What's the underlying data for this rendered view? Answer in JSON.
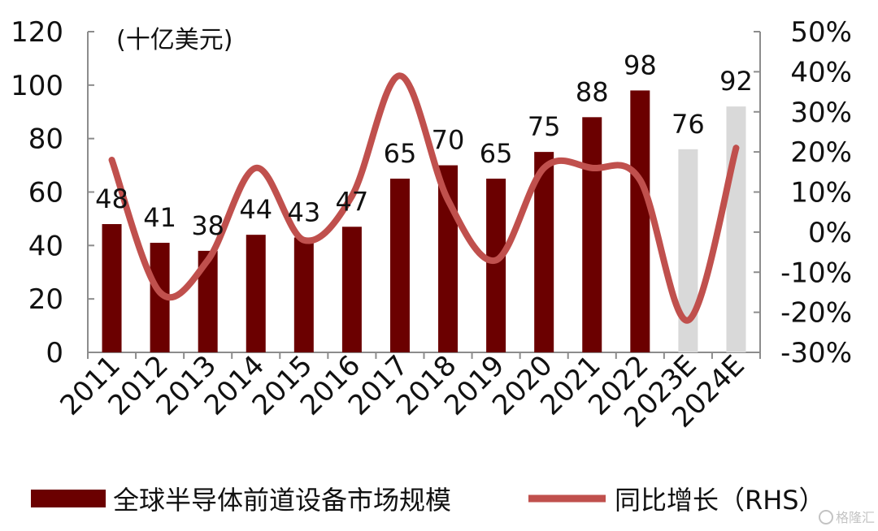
{
  "chart_data": {
    "type": "bar",
    "unit_label": "(十亿美元)",
    "categories": [
      "2011",
      "2012",
      "2013",
      "2014",
      "2015",
      "2016",
      "2017",
      "2018",
      "2019",
      "2020",
      "2021",
      "2022",
      "2023E",
      "2024E"
    ],
    "series": [
      {
        "name": "全球半导体前道设备市场规模",
        "type": "bar",
        "axis": "left",
        "values": [
          48,
          41,
          38,
          44,
          43,
          47,
          65,
          70,
          65,
          75,
          88,
          98,
          76,
          92
        ],
        "colors": [
          "#6b0000",
          "#6b0000",
          "#6b0000",
          "#6b0000",
          "#6b0000",
          "#6b0000",
          "#6b0000",
          "#6b0000",
          "#6b0000",
          "#6b0000",
          "#6b0000",
          "#6b0000",
          "#d9d9d9",
          "#d9d9d9"
        ]
      },
      {
        "name": "同比增长（RHS）",
        "type": "line",
        "axis": "right",
        "smooth": true,
        "color": "#c0504d",
        "values": [
          0.18,
          -0.15,
          -0.07,
          0.16,
          -0.02,
          0.09,
          0.39,
          0.08,
          -0.07,
          0.16,
          0.16,
          0.13,
          -0.22,
          0.21
        ]
      }
    ],
    "y_left": {
      "min": 0,
      "max": 120,
      "step": 20,
      "ticks": [
        "0",
        "20",
        "40",
        "60",
        "80",
        "100",
        "120"
      ]
    },
    "y_right": {
      "min": -0.3,
      "max": 0.5,
      "step": 0.1,
      "ticks": [
        "-30%",
        "-20%",
        "-10%",
        "0%",
        "10%",
        "20%",
        "30%",
        "40%",
        "50%"
      ]
    },
    "legend_position": "bottom",
    "grid": false
  },
  "watermark": {
    "text": "格隆汇"
  },
  "colors": {
    "bar": "#6b0000",
    "bar_estimate": "#d9d9d9",
    "line": "#c0504d",
    "axis": "#8c8c8c"
  }
}
